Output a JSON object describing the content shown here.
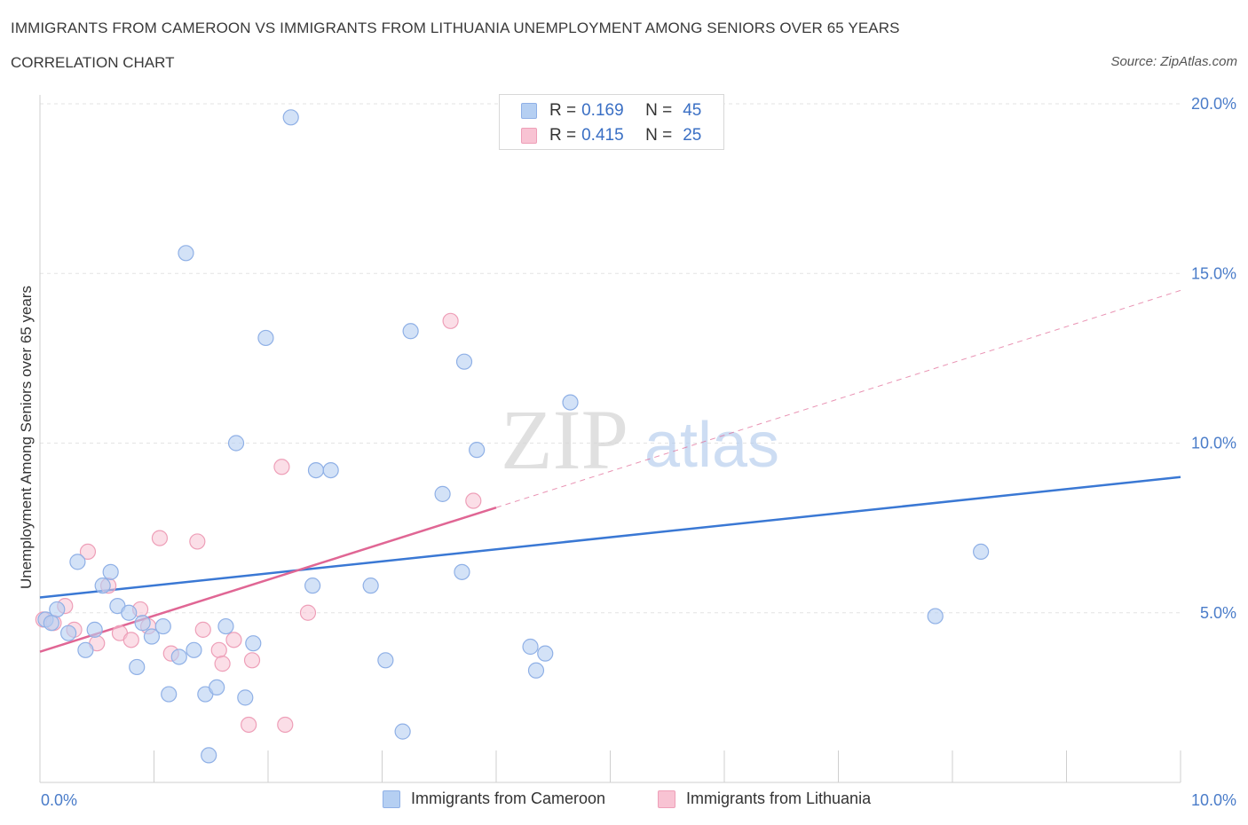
{
  "header": {
    "title": "IMMIGRANTS FROM CAMEROON VS IMMIGRANTS FROM LITHUANIA UNEMPLOYMENT AMONG SENIORS OVER 65 YEARS",
    "subtitle": "CORRELATION CHART",
    "source": "Source: ZipAtlas.com"
  },
  "legend": {
    "r_label": "R =",
    "n_label": "N =",
    "rows": [
      {
        "r": "0.169",
        "n": "45"
      },
      {
        "r": "0.415",
        "n": "25"
      }
    ]
  },
  "watermark": {
    "zip": "ZIP",
    "atlas": "atlas"
  },
  "colors": {
    "cameroon_fill": "#b5cff2",
    "cameroon_stroke": "#8fb0e6",
    "cameroon_line": "#3a78d4",
    "lithuania_fill": "#f8c3d3",
    "lithuania_stroke": "#ee9fb8",
    "lithuania_line": "#e06694",
    "tick": "#4a7cc9",
    "grid": "#e3e3e3"
  },
  "chart_data": {
    "type": "scatter",
    "title": "IMMIGRANTS FROM CAMEROON VS IMMIGRANTS FROM LITHUANIA UNEMPLOYMENT AMONG SENIORS OVER 65 YEARS",
    "xlabel": "",
    "ylabel": "Unemployment Among Seniors over 65 years",
    "xlim": [
      0,
      10
    ],
    "ylim": [
      0,
      20
    ],
    "x_ticks": [
      0,
      1,
      2,
      3,
      4,
      5,
      6,
      7,
      8,
      9,
      10
    ],
    "x_tick_labels": [
      "0.0%",
      "10.0%"
    ],
    "y_ticks": [
      5,
      10,
      15,
      20
    ],
    "y_tick_labels": [
      "5.0%",
      "10.0%",
      "15.0%",
      "20.0%"
    ],
    "grid": true,
    "legend_position": "bottom",
    "series": [
      {
        "name": "Immigrants from Cameroon",
        "R": 0.169,
        "N": 45,
        "points": [
          [
            0.05,
            4.8
          ],
          [
            0.1,
            4.7
          ],
          [
            0.15,
            5.1
          ],
          [
            0.25,
            4.4
          ],
          [
            0.33,
            6.5
          ],
          [
            0.4,
            3.9
          ],
          [
            0.48,
            4.5
          ],
          [
            0.55,
            5.8
          ],
          [
            0.62,
            6.2
          ],
          [
            0.68,
            5.2
          ],
          [
            0.78,
            5.0
          ],
          [
            0.85,
            3.4
          ],
          [
            0.9,
            4.7
          ],
          [
            0.98,
            4.3
          ],
          [
            1.08,
            4.6
          ],
          [
            1.13,
            2.6
          ],
          [
            1.22,
            3.7
          ],
          [
            1.28,
            15.6
          ],
          [
            1.35,
            3.9
          ],
          [
            1.45,
            2.6
          ],
          [
            1.48,
            0.8
          ],
          [
            1.55,
            2.8
          ],
          [
            1.63,
            4.6
          ],
          [
            1.72,
            10.0
          ],
          [
            1.8,
            2.5
          ],
          [
            1.87,
            4.1
          ],
          [
            1.98,
            13.1
          ],
          [
            2.2,
            19.6
          ],
          [
            2.39,
            5.8
          ],
          [
            2.42,
            9.2
          ],
          [
            2.55,
            9.2
          ],
          [
            2.9,
            5.8
          ],
          [
            3.03,
            3.6
          ],
          [
            3.18,
            1.5
          ],
          [
            3.25,
            13.3
          ],
          [
            3.53,
            8.5
          ],
          [
            3.7,
            6.2
          ],
          [
            3.72,
            12.4
          ],
          [
            3.83,
            9.8
          ],
          [
            4.3,
            4.0
          ],
          [
            4.35,
            3.3
          ],
          [
            4.43,
            3.8
          ],
          [
            4.65,
            11.2
          ],
          [
            7.85,
            4.9
          ],
          [
            8.25,
            6.8
          ]
        ],
        "trend": {
          "x": [
            0,
            10
          ],
          "y": [
            5.45,
            9.0
          ]
        }
      },
      {
        "name": "Immigrants from Lithuania",
        "R": 0.415,
        "N": 25,
        "points": [
          [
            0.03,
            4.8
          ],
          [
            0.12,
            4.7
          ],
          [
            0.22,
            5.2
          ],
          [
            0.3,
            4.5
          ],
          [
            0.42,
            6.8
          ],
          [
            0.5,
            4.1
          ],
          [
            0.6,
            5.8
          ],
          [
            0.7,
            4.4
          ],
          [
            0.8,
            4.2
          ],
          [
            0.88,
            5.1
          ],
          [
            0.95,
            4.6
          ],
          [
            1.05,
            7.2
          ],
          [
            1.15,
            3.8
          ],
          [
            1.38,
            7.1
          ],
          [
            1.43,
            4.5
          ],
          [
            1.57,
            3.9
          ],
          [
            1.6,
            3.5
          ],
          [
            1.7,
            4.2
          ],
          [
            1.83,
            1.7
          ],
          [
            1.86,
            3.6
          ],
          [
            2.12,
            9.3
          ],
          [
            2.15,
            1.7
          ],
          [
            2.35,
            5.0
          ],
          [
            3.6,
            13.6
          ],
          [
            3.8,
            8.3
          ]
        ],
        "trend": {
          "x": [
            0,
            4.0
          ],
          "y": [
            3.85,
            8.1
          ]
        },
        "trend_extension": {
          "x": [
            4.0,
            10
          ],
          "y": [
            8.1,
            14.5
          ]
        }
      }
    ]
  },
  "bottom_legend": [
    "Immigrants from Cameroon",
    "Immigrants from Lithuania"
  ]
}
